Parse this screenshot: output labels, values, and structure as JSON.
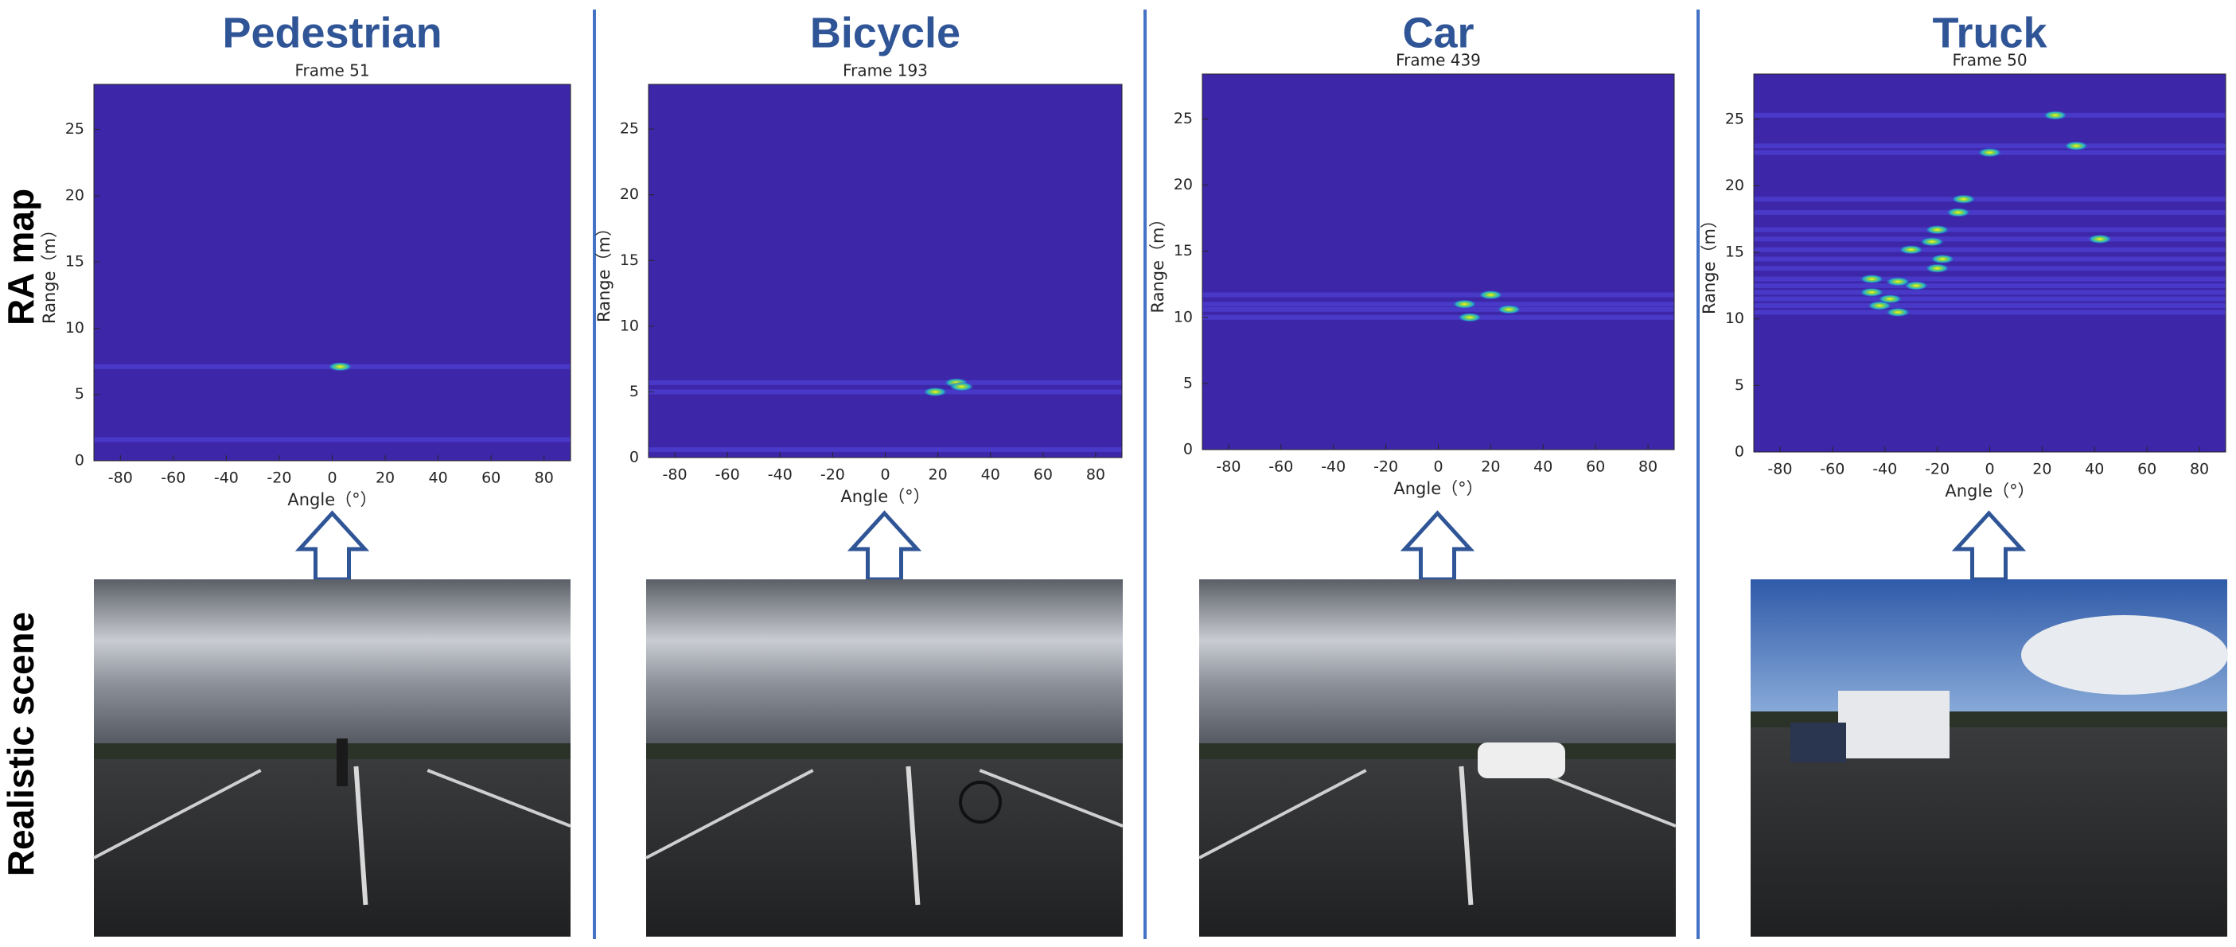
{
  "headings": [
    "Pedestrian",
    "Bicycle",
    "Car",
    "Truck"
  ],
  "row_labels": [
    "RA  map",
    "Realistic scene"
  ],
  "chart_data": [
    {
      "type": "heatmap",
      "title": "Frame 51",
      "xlabel": "Angle（°）",
      "ylabel": "Range（m）",
      "xlim": [
        -90,
        90
      ],
      "ylim": [
        0,
        28.4
      ],
      "xticks": [
        -80,
        -60,
        -40,
        -20,
        0,
        20,
        40,
        60,
        80
      ],
      "yticks": [
        0,
        5,
        10,
        15,
        20,
        25
      ],
      "color": "#3e26a8",
      "x": [
        3
      ],
      "values": [
        7.1
      ],
      "bands": [
        7.1,
        1.6
      ]
    },
    {
      "type": "heatmap",
      "title": "Frame 193",
      "xlabel": "Angle（°）",
      "ylabel": "Range（m）",
      "xlim": [
        -90,
        90
      ],
      "ylim": [
        0,
        28.4
      ],
      "xticks": [
        -80,
        -60,
        -40,
        -20,
        0,
        20,
        40,
        60,
        80
      ],
      "yticks": [
        0,
        5,
        10,
        15,
        20,
        25
      ],
      "color": "#3e26a8",
      "x": [
        27,
        19,
        29
      ],
      "values": [
        5.7,
        5,
        5.4
      ],
      "bands": [
        5.7,
        5,
        0.6
      ]
    },
    {
      "type": "heatmap",
      "title": "Frame 439",
      "xlabel": "Angle（°）",
      "ylabel": "Range（m）",
      "xlim": [
        -90,
        90
      ],
      "ylim": [
        0,
        28.4
      ],
      "xticks": [
        -80,
        -60,
        -40,
        -20,
        0,
        20,
        40,
        60,
        80
      ],
      "yticks": [
        0,
        5,
        10,
        15,
        20,
        25
      ],
      "color": "#3e26a8",
      "x": [
        20,
        10,
        27,
        12
      ],
      "values": [
        11.7,
        11,
        10.6,
        10
      ],
      "bands": [
        11.7,
        11,
        10.6,
        10
      ]
    },
    {
      "type": "heatmap",
      "title": "Frame 50",
      "xlabel": "Angle（°）",
      "ylabel": "Range（m）",
      "xlim": [
        -90,
        90
      ],
      "ylim": [
        0,
        28.4
      ],
      "xticks": [
        -80,
        -60,
        -40,
        -20,
        0,
        20,
        40,
        60,
        80
      ],
      "yticks": [
        0,
        5,
        10,
        15,
        20,
        25
      ],
      "color": "#3e26a8",
      "x": [
        25,
        33,
        0,
        42,
        -10,
        -12,
        -20,
        -22,
        -30,
        -18,
        -20,
        -45,
        -35,
        -28,
        -45,
        -38,
        -42,
        -35
      ],
      "values": [
        25.3,
        23,
        22.5,
        16,
        19,
        18,
        16.7,
        15.8,
        15.2,
        14.5,
        13.8,
        13,
        12.8,
        12.5,
        12,
        11.5,
        11,
        10.5
      ],
      "bands": [
        25.3,
        23,
        22.5,
        19,
        18,
        16.7,
        16,
        15.2,
        14.5,
        13.8,
        13,
        12.5,
        12,
        11.5,
        11,
        10.5
      ]
    }
  ]
}
